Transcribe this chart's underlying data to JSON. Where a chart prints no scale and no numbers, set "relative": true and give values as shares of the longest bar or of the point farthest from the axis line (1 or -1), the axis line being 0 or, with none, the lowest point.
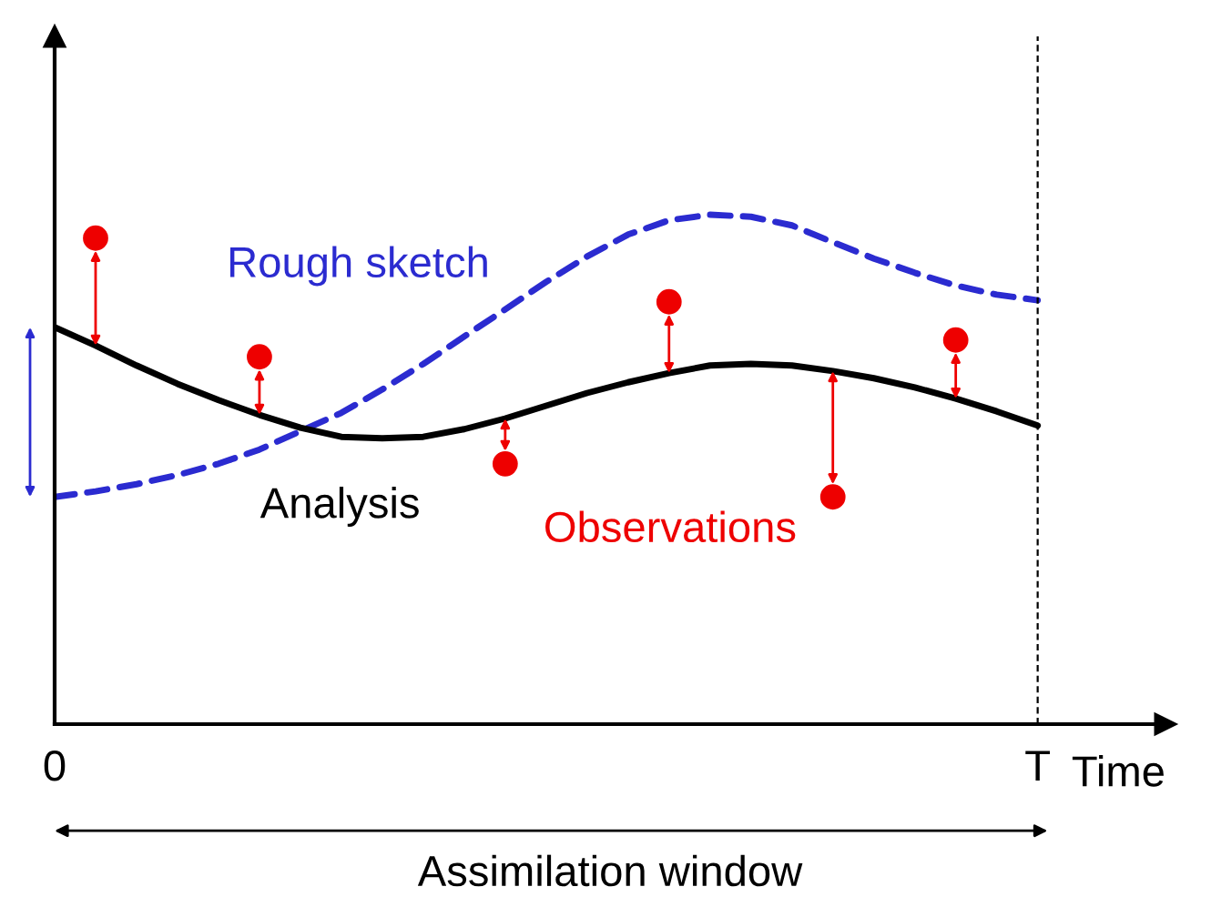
{
  "chart_data": {
    "type": "line",
    "relative": true,
    "xlabel": "Time",
    "categories": [
      "0",
      null,
      null,
      null,
      null,
      null,
      null,
      null,
      null,
      null,
      null,
      null,
      null,
      null,
      null,
      null,
      null,
      null,
      null,
      null,
      null,
      null,
      null,
      null,
      "T"
    ],
    "series": [
      {
        "name": "Rough sketch",
        "color": "#2b2bd0",
        "line_style": "dashed",
        "marker": "none",
        "values": [
          0.446,
          0.457,
          0.471,
          0.489,
          0.511,
          0.539,
          0.575,
          0.611,
          0.657,
          0.707,
          0.761,
          0.814,
          0.868,
          0.918,
          0.961,
          0.989,
          1.0,
          0.996,
          0.979,
          0.946,
          0.914,
          0.886,
          0.861,
          0.843,
          0.832
        ]
      },
      {
        "name": "Analysis",
        "color": "#000000",
        "line_style": "solid",
        "marker": "none",
        "values": [
          0.779,
          0.743,
          0.704,
          0.668,
          0.636,
          0.607,
          0.582,
          0.564,
          0.561,
          0.564,
          0.579,
          0.6,
          0.625,
          0.65,
          0.671,
          0.689,
          0.704,
          0.707,
          0.704,
          0.693,
          0.679,
          0.661,
          0.639,
          0.614,
          0.586
        ]
      },
      {
        "name": "Observations",
        "type": "scatter",
        "color": "#ee0000",
        "marker": "circle",
        "values": [
          null,
          0.954,
          null,
          null,
          null,
          0.721,
          null,
          null,
          null,
          null,
          null,
          0.511,
          null,
          null,
          null,
          0.829,
          null,
          null,
          null,
          0.446,
          null,
          null,
          0.754,
          null,
          null
        ]
      }
    ],
    "ref_lines": [
      {
        "axis": "x",
        "value": "T",
        "label": null,
        "color": "#000000",
        "line_style": "dashed"
      }
    ],
    "annotations": [
      "Assimilation window"
    ]
  }
}
